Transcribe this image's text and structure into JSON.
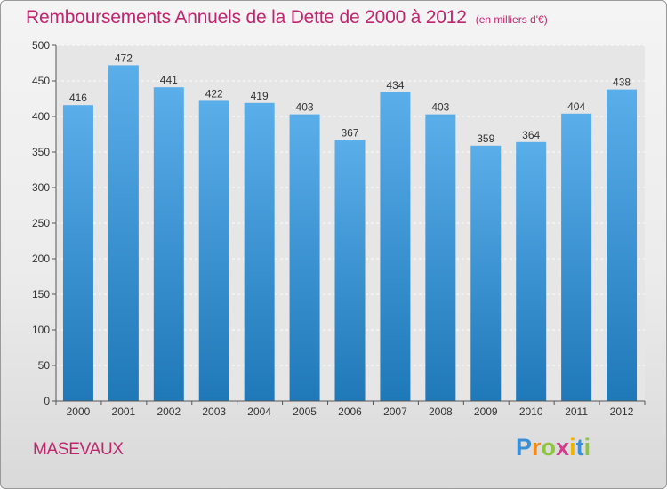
{
  "chart_data": {
    "type": "bar",
    "title": "Remboursements Annuels de la Dette de 2000 à 2012",
    "unit_note": "(en milliers d'€)",
    "categories": [
      "2000",
      "2001",
      "2002",
      "2003",
      "2004",
      "2005",
      "2006",
      "2007",
      "2008",
      "2009",
      "2010",
      "2011",
      "2012"
    ],
    "values": [
      416,
      472,
      441,
      422,
      419,
      403,
      367,
      434,
      403,
      359,
      364,
      404,
      438
    ],
    "ylim": [
      0,
      500
    ],
    "yticks": [
      0,
      50,
      100,
      150,
      200,
      250,
      300,
      350,
      400,
      450,
      500
    ],
    "grid": true,
    "legend": "none",
    "bar_color_top": "#5aaeea",
    "bar_color_bottom": "#1f78b8"
  },
  "footer": {
    "city": "MASEVAUX",
    "logo_letters": [
      "P",
      "r",
      "o",
      "x",
      "i",
      "t",
      "i"
    ],
    "logo_colors": [
      "#3a8fd6",
      "#f08a1c",
      "#8cc63f",
      "#d23c8a",
      "#f0b400",
      "#3a8fd6",
      "#8cc63f"
    ]
  }
}
